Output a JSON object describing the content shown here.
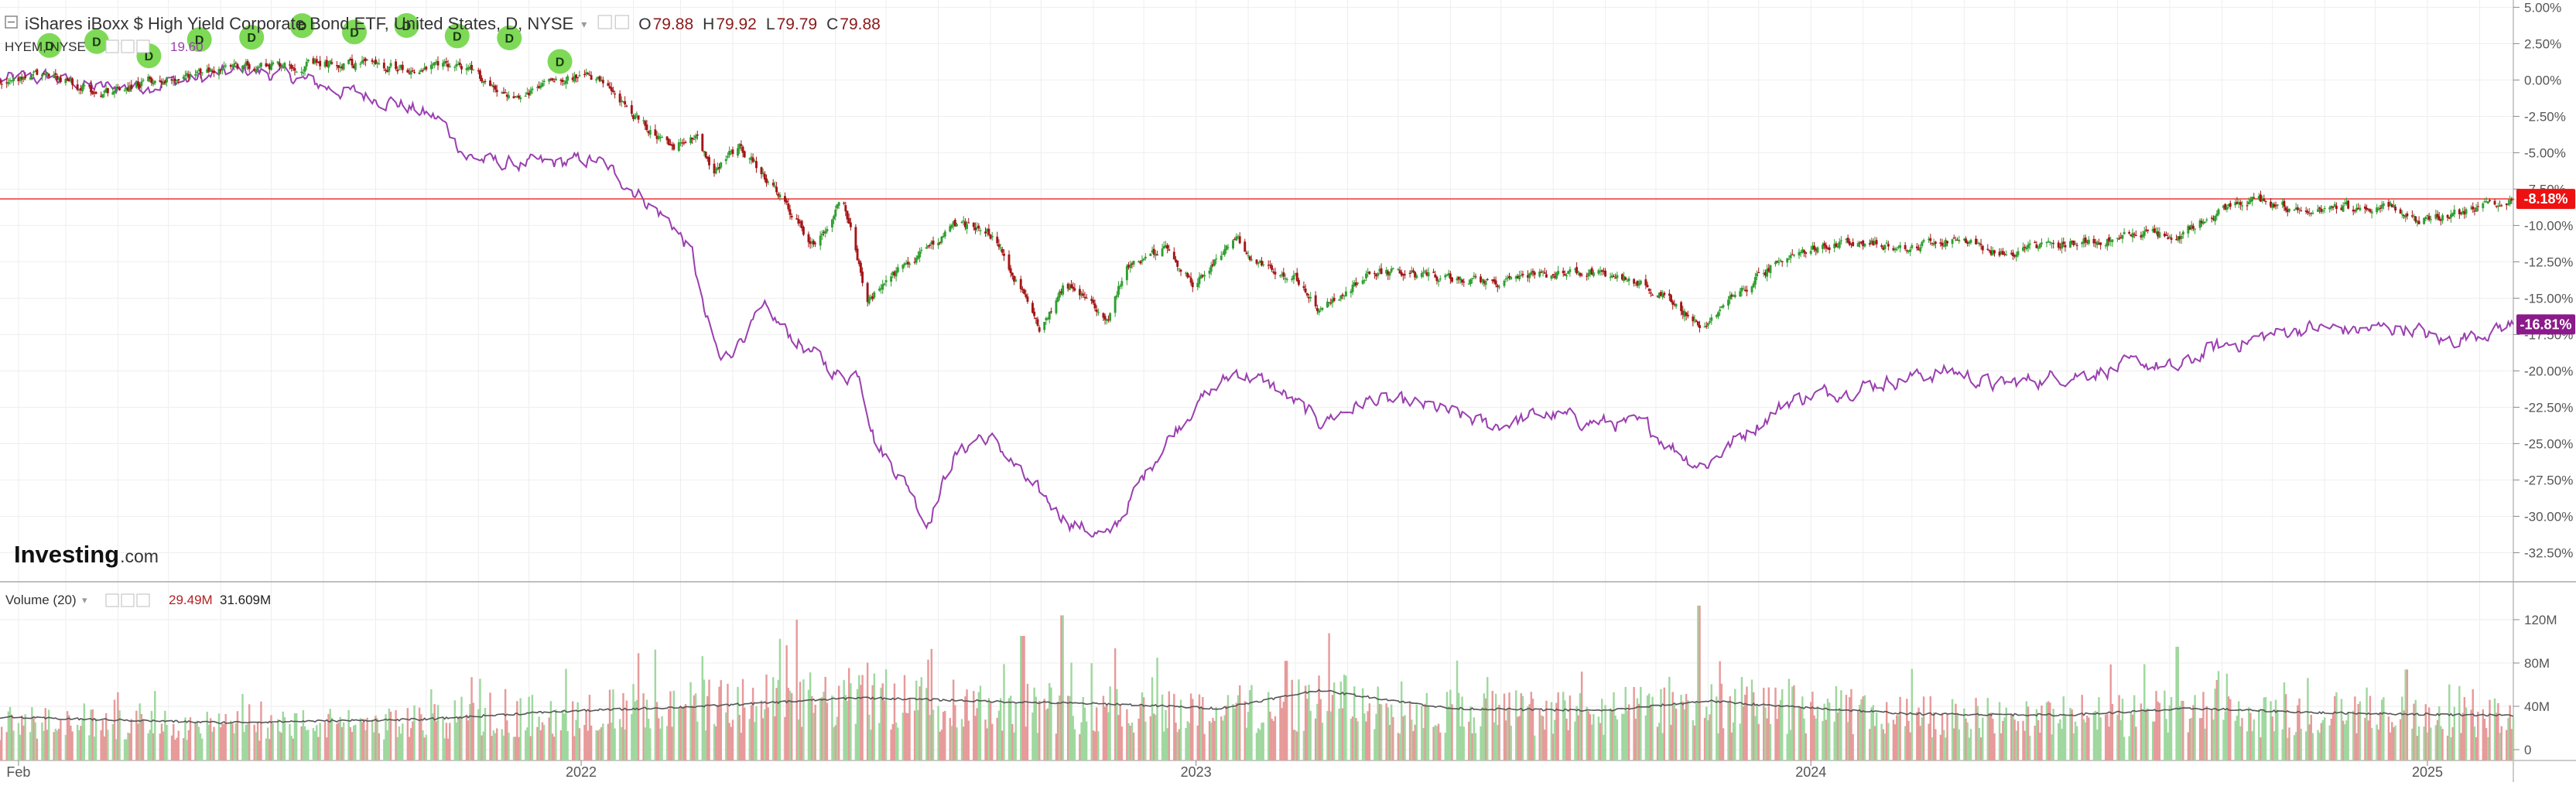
{
  "legend": {
    "main_title": "iShares iBoxx $ High Yield Corporate Bond ETF, United States, D, NYSE",
    "ohlc": [
      {
        "key": "O",
        "value": "79.88"
      },
      {
        "key": "H",
        "value": "79.92"
      },
      {
        "key": "L",
        "value": "79.79"
      },
      {
        "key": "C",
        "value": "79.88"
      }
    ],
    "compare_symbol": "HYEM, NYSE",
    "compare_value": "19.60",
    "volume_title": "Volume (20)",
    "volume_value": "29.49M",
    "volume_ma_value": "31.609M"
  },
  "brand": {
    "name": "Investing",
    "suffix": ".com"
  },
  "dividend_marker_label": "D",
  "colors": {
    "up": "#2f9e2f",
    "down": "#a31515",
    "compare_line": "#9b3fb0",
    "vol_up": "#9fd89f",
    "vol_down": "#e79a9a",
    "vol_ma": "#555555",
    "dividend_marker": "#7ed957",
    "hyg_tag": "#ee1111",
    "hyem_tag": "#8b1a8b",
    "hline": "#ee3333"
  },
  "price_tags": {
    "hyg": "-8.18%",
    "hyem": "-16.81%"
  },
  "chart_data": [
    {
      "type": "line",
      "title": "iShares iBoxx $ High Yield Corporate Bond ETF, United States, D, NYSE",
      "y_axis": {
        "unit": "percent change",
        "ticks": [
          "5.00%",
          "2.50%",
          "0.00%",
          "-2.50%",
          "-5.00%",
          "-7.50%",
          "-10.00%",
          "-12.50%",
          "-15.00%",
          "-17.50%",
          "-20.00%",
          "-22.50%",
          "-25.00%",
          "-27.50%",
          "-30.00%",
          "-32.50%"
        ],
        "tick_values": [
          5,
          2.5,
          0,
          -2.5,
          -5,
          -7.5,
          -10,
          -12.5,
          -15,
          -17.5,
          -20,
          -22.5,
          -25,
          -27.5,
          -30,
          -32.5
        ],
        "range": [
          -34.5,
          5.5
        ]
      },
      "x_axis": {
        "ticks": [
          "Feb",
          "2022",
          "2023",
          "2024",
          "2025"
        ],
        "tick_dates": [
          "2021-02-01",
          "2022-01-01",
          "2023-01-01",
          "2024-01-01",
          "2025-01-01"
        ],
        "range": [
          "2021-01-21",
          "2025-02-21"
        ]
      },
      "series": [
        {
          "name": "iShares iBoxx $ High Yield Corporate Bond ETF",
          "style": "candlestick",
          "last_value": -8.18,
          "points": [
            [
              "2021-01-22",
              0.0
            ],
            [
              "2021-02-20",
              0.4
            ],
            [
              "2021-03-20",
              -0.9
            ],
            [
              "2021-04-15",
              -0.2
            ],
            [
              "2021-05-20",
              0.5
            ],
            [
              "2021-06-25",
              1.1
            ],
            [
              "2021-07-20",
              1.0
            ],
            [
              "2021-08-25",
              1.2
            ],
            [
              "2021-09-25",
              0.7
            ],
            [
              "2021-10-20",
              1.1
            ],
            [
              "2021-11-25",
              -1.5
            ],
            [
              "2021-12-15",
              0.3
            ],
            [
              "2022-01-10",
              0.1
            ],
            [
              "2022-01-30",
              -2.2
            ],
            [
              "2022-02-25",
              -4.9
            ],
            [
              "2022-03-10",
              -3.6
            ],
            [
              "2022-03-20",
              -6.2
            ],
            [
              "2022-04-05",
              -4.5
            ],
            [
              "2022-04-25",
              -7.5
            ],
            [
              "2022-05-20",
              -11.5
            ],
            [
              "2022-06-05",
              -7.8
            ],
            [
              "2022-06-20",
              -15.2
            ],
            [
              "2022-07-05",
              -13.5
            ],
            [
              "2022-08-10",
              -10.0
            ],
            [
              "2022-08-30",
              -10.2
            ],
            [
              "2022-09-10",
              -12.5
            ],
            [
              "2022-09-30",
              -17.0
            ],
            [
              "2022-10-15",
              -14.0
            ],
            [
              "2022-11-10",
              -16.2
            ],
            [
              "2022-11-20",
              -13.0
            ],
            [
              "2022-12-15",
              -11.5
            ],
            [
              "2022-12-30",
              -14.0
            ],
            [
              "2023-01-25",
              -11.0
            ],
            [
              "2023-02-10",
              -13.0
            ],
            [
              "2023-03-01",
              -13.5
            ],
            [
              "2023-03-15",
              -16.0
            ],
            [
              "2023-04-15",
              -13.2
            ],
            [
              "2023-05-20",
              -13.5
            ],
            [
              "2023-06-25",
              -14.0
            ],
            [
              "2023-07-20",
              -13.5
            ],
            [
              "2023-08-25",
              -13.2
            ],
            [
              "2023-09-20",
              -13.9
            ],
            [
              "2023-10-20",
              -16.0
            ],
            [
              "2023-10-30",
              -17.0
            ],
            [
              "2023-11-20",
              -14.5
            ],
            [
              "2023-12-20",
              -11.8
            ],
            [
              "2024-01-25",
              -11.1
            ],
            [
              "2024-02-25",
              -11.5
            ],
            [
              "2024-03-25",
              -10.9
            ],
            [
              "2024-04-20",
              -11.9
            ],
            [
              "2024-05-20",
              -11.4
            ],
            [
              "2024-06-20",
              -11.0
            ],
            [
              "2024-07-20",
              -10.5
            ],
            [
              "2024-08-05",
              -11.0
            ],
            [
              "2024-08-25",
              -9.3
            ],
            [
              "2024-09-20",
              -8.3
            ],
            [
              "2024-10-20",
              -8.9
            ],
            [
              "2024-11-20",
              -8.8
            ],
            [
              "2024-12-10",
              -8.6
            ],
            [
              "2024-12-20",
              -9.8
            ],
            [
              "2025-01-25",
              -9.0
            ],
            [
              "2025-02-20",
              -8.18
            ]
          ]
        },
        {
          "name": "HYEM",
          "style": "line",
          "last_value": -16.81,
          "points": [
            [
              "2021-01-22",
              0.0
            ],
            [
              "2021-02-20",
              0.2
            ],
            [
              "2021-03-20",
              -0.6
            ],
            [
              "2021-04-20",
              -0.3
            ],
            [
              "2021-05-20",
              0.1
            ],
            [
              "2021-06-15",
              0.7
            ],
            [
              "2021-07-10",
              0.3
            ],
            [
              "2021-08-10",
              -0.7
            ],
            [
              "2021-09-10",
              -1.4
            ],
            [
              "2021-10-10",
              -2.8
            ],
            [
              "2021-10-25",
              -5.2
            ],
            [
              "2021-11-15",
              -5.8
            ],
            [
              "2021-12-10",
              -5.8
            ],
            [
              "2022-01-10",
              -5.5
            ],
            [
              "2022-02-01",
              -7.5
            ],
            [
              "2022-02-25",
              -10.0
            ],
            [
              "2022-03-08",
              -12.0
            ],
            [
              "2022-03-15",
              -16.0
            ],
            [
              "2022-03-25",
              -19.5
            ],
            [
              "2022-04-10",
              -17.0
            ],
            [
              "2022-04-20",
              -16.0
            ],
            [
              "2022-05-15",
              -18.5
            ],
            [
              "2022-06-05",
              -20.5
            ],
            [
              "2022-06-15",
              -20.0
            ],
            [
              "2022-06-25",
              -25.0
            ],
            [
              "2022-07-15",
              -28.0
            ],
            [
              "2022-07-25",
              -30.5
            ],
            [
              "2022-08-10",
              -26.0
            ],
            [
              "2022-08-25",
              -24.5
            ],
            [
              "2022-09-05",
              -25.0
            ],
            [
              "2022-09-25",
              -28.0
            ],
            [
              "2022-10-20",
              -30.5
            ],
            [
              "2022-11-10",
              -31.5
            ],
            [
              "2022-11-20",
              -29.5
            ],
            [
              "2022-12-10",
              -25.5
            ],
            [
              "2022-12-30",
              -22.5
            ],
            [
              "2023-01-25",
              -20.0
            ],
            [
              "2023-02-15",
              -21.0
            ],
            [
              "2023-03-15",
              -23.5
            ],
            [
              "2023-04-15",
              -22.0
            ],
            [
              "2023-05-20",
              -22.5
            ],
            [
              "2023-06-25",
              -23.8
            ],
            [
              "2023-07-25",
              -23.0
            ],
            [
              "2023-08-25",
              -23.5
            ],
            [
              "2023-09-25",
              -23.8
            ],
            [
              "2023-10-20",
              -26.0
            ],
            [
              "2023-10-30",
              -26.5
            ],
            [
              "2023-11-20",
              -24.5
            ],
            [
              "2023-12-20",
              -22.0
            ],
            [
              "2024-01-25",
              -21.2
            ],
            [
              "2024-02-25",
              -20.5
            ],
            [
              "2024-03-25",
              -20.0
            ],
            [
              "2024-04-20",
              -21.0
            ],
            [
              "2024-05-20",
              -20.5
            ],
            [
              "2024-06-20",
              -20.0
            ],
            [
              "2024-07-20",
              -19.5
            ],
            [
              "2024-08-05",
              -20.0
            ],
            [
              "2024-08-25",
              -18.5
            ],
            [
              "2024-09-20",
              -17.8
            ],
            [
              "2024-10-20",
              -17.0
            ],
            [
              "2024-11-20",
              -17.2
            ],
            [
              "2024-12-20",
              -17.0
            ],
            [
              "2025-01-10",
              -18.0
            ],
            [
              "2025-02-20",
              -16.81
            ]
          ]
        }
      ],
      "reference_line": {
        "value": -8.18
      },
      "dividend_markers": [
        "2021-02-01",
        "2021-03-01",
        "2021-04-01",
        "2021-05-01",
        "2021-06-01",
        "2021-07-01",
        "2021-08-01",
        "2021-09-01",
        "2021-10-01",
        "2021-11-01",
        "2021-12-01"
      ]
    },
    {
      "type": "bar",
      "title": "Volume (20)",
      "y_axis": {
        "ticks": [
          "120M",
          "80M",
          "40M",
          "0"
        ],
        "tick_values": [
          120,
          80,
          40,
          0
        ],
        "unit": "M shares",
        "range": [
          0,
          140
        ]
      },
      "series": [
        {
          "name": "Volume",
          "levels": [
            [
              "2021-01-22",
              25
            ],
            [
              "2021-06-01",
              22
            ],
            [
              "2021-10-01",
              26
            ],
            [
              "2021-12-15",
              33
            ],
            [
              "2022-02-01",
              38
            ],
            [
              "2022-04-01",
              42
            ],
            [
              "2022-06-15",
              48
            ],
            [
              "2022-09-01",
              42
            ],
            [
              "2022-11-01",
              40
            ],
            [
              "2023-01-15",
              36
            ],
            [
              "2023-03-15",
              46
            ],
            [
              "2023-06-01",
              36
            ],
            [
              "2023-09-01",
              34
            ],
            [
              "2023-10-20",
              43
            ],
            [
              "2023-12-15",
              42
            ],
            [
              "2024-02-15",
              32
            ],
            [
              "2024-05-01",
              30
            ],
            [
              "2024-08-05",
              35
            ],
            [
              "2024-10-01",
              30
            ],
            [
              "2024-12-15",
              32
            ],
            [
              "2025-02-20",
              29.49
            ]
          ],
          "peaks": [
            [
              "2022-05-08",
              120
            ],
            [
              "2022-10-14",
              124
            ],
            [
              "2023-10-27",
              133
            ],
            [
              "2024-08-05",
              95
            ],
            [
              "2022-09-20",
              105
            ],
            [
              "2023-02-24",
              82
            ],
            [
              "2024-12-20",
              74
            ]
          ]
        },
        {
          "name": "Volume MA (20)",
          "levels": [
            [
              "2021-01-22",
              30
            ],
            [
              "2021-06-01",
              25
            ],
            [
              "2021-10-01",
              28
            ],
            [
              "2021-12-15",
              35
            ],
            [
              "2022-03-15",
              40
            ],
            [
              "2022-06-15",
              48
            ],
            [
              "2022-09-15",
              44
            ],
            [
              "2022-11-15",
              42
            ],
            [
              "2023-01-15",
              38
            ],
            [
              "2023-03-15",
              55
            ],
            [
              "2023-06-01",
              38
            ],
            [
              "2023-09-01",
              36
            ],
            [
              "2023-11-01",
              45
            ],
            [
              "2023-12-15",
              40
            ],
            [
              "2024-03-01",
              33
            ],
            [
              "2024-06-01",
              32
            ],
            [
              "2024-08-15",
              38
            ],
            [
              "2024-11-01",
              34
            ],
            [
              "2025-02-20",
              31.609
            ]
          ]
        }
      ]
    }
  ]
}
